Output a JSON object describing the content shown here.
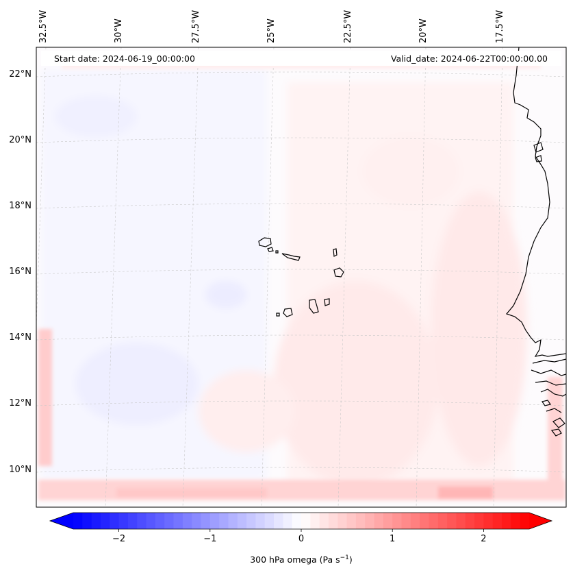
{
  "map": {
    "start_date_label": "Start date: 2024-06-19_00:00:00",
    "valid_date_label": "Valid_date: 2024-06-22T00:00:00.00",
    "lon_labels": [
      "32.5°W",
      "30°W",
      "27.5°W",
      "25°W",
      "22.5°W",
      "20°W",
      "17.5°W"
    ],
    "lat_labels": [
      "22°N",
      "20°N",
      "18°N",
      "16°N",
      "14°N",
      "12°N",
      "10°N"
    ],
    "field": "300 hPa omega",
    "gridlines": true
  },
  "colorbar": {
    "label_prefix": "300 hPa omega (Pa s",
    "label_exp": "−1",
    "label_suffix": ")",
    "ticks": [
      "−2",
      "−1",
      "0",
      "1",
      "2"
    ],
    "tick_values": [
      -2,
      -1,
      0,
      1,
      2
    ],
    "range": [
      -2.5,
      2.5
    ],
    "extend": "both",
    "colormap": "bwr",
    "colors": {
      "min": "#0000ff",
      "mid": "#ffffff",
      "max": "#ff0000"
    }
  }
}
